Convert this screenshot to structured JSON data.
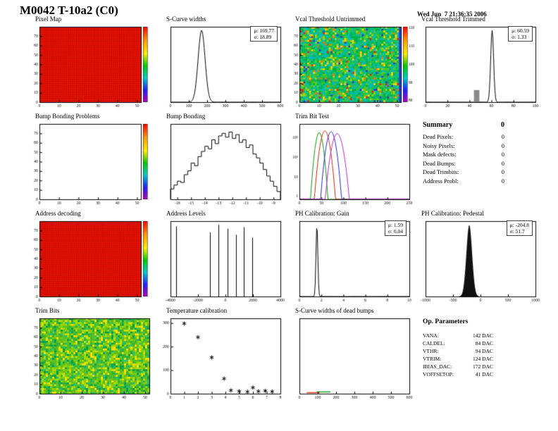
{
  "page": {
    "title": "M0042 T-10a2 (C0)",
    "date": "Wed Jun  7 21:36:35 2006"
  },
  "summary": {
    "title": "Summary",
    "total": "0",
    "items": [
      {
        "label": "Dead Pixels:",
        "value": "0"
      },
      {
        "label": "Noisy Pixels:",
        "value": "0"
      },
      {
        "label": "Mask defects:",
        "value": "0"
      },
      {
        "label": "Dead Bumps:",
        "value": "0"
      },
      {
        "label": "Dead Trimbits:",
        "value": "0"
      },
      {
        "label": "Address Probl:",
        "value": "0"
      }
    ]
  },
  "op_parameters": {
    "title": "Op. Parameters",
    "items": [
      {
        "label": "VANA:",
        "value": "142 DAC"
      },
      {
        "label": "CALDEL:",
        "value": "84 DAC"
      },
      {
        "label": "VTHR:",
        "value": "94 DAC"
      },
      {
        "label": "VTRIM:",
        "value": "124 DAC"
      },
      {
        "label": "IBIAS_DAC:",
        "value": "172 DAC"
      },
      {
        "label": "VOFFSETOP:",
        "value": "41 DAC"
      }
    ]
  },
  "colors": {
    "map_red": "#ec1400",
    "edge_blue": "#2244dd",
    "hist_line": "#000000"
  },
  "chart_data": [
    {
      "id": "pixel-map",
      "title": "Pixel Map",
      "type": "heatmap",
      "style": "solid-red",
      "colorbar": true,
      "x_range": [
        0,
        52
      ],
      "y_range": [
        0,
        80
      ],
      "x_ticks": [
        0,
        10,
        20,
        30,
        40,
        50
      ],
      "y_ticks": [
        0,
        10,
        20,
        30,
        40,
        50,
        60,
        70
      ]
    },
    {
      "id": "s-curve-widths",
      "title": "S-Curve widths",
      "type": "hist_gauss",
      "mean": 169.77,
      "sigma": 18.89,
      "x_range": [
        0,
        600
      ],
      "x_ticks": [
        0,
        100,
        200,
        300,
        400,
        500,
        600
      ],
      "stats": {
        "mu": "μ: 169.77",
        "sigma": "σ: 18.89"
      }
    },
    {
      "id": "vcal-threshold-untrimmed",
      "title": "Vcal Threshold Untrimmed",
      "type": "heatmap",
      "style": "noise",
      "seed": 7,
      "colorbar": true,
      "x_range": [
        0,
        52
      ],
      "y_range": [
        0,
        80
      ],
      "x_ticks": [
        0,
        10,
        20,
        30,
        40,
        50
      ],
      "y_ticks": [
        0,
        10,
        20,
        30,
        40,
        50,
        60,
        70
      ],
      "z_ticks": [
        120,
        110,
        100,
        90,
        80
      ]
    },
    {
      "id": "vcal-threshold-trimmed",
      "title": "Vcal Threshold Trimmed",
      "type": "hist_gauss",
      "mean": 60.59,
      "sigma": 1.33,
      "x_range": [
        0,
        100
      ],
      "x_ticks": [
        0,
        20,
        40,
        60,
        80,
        100
      ],
      "extra_bar": {
        "x0": 44,
        "x1": 49,
        "frac": 0.16
      },
      "stats": {
        "mu": "μ: 60.59",
        "sigma": "σ: 1.33"
      }
    },
    {
      "id": "bump-bonding-problems",
      "title": "Bump Bonding Problems",
      "type": "heatmap",
      "style": "empty",
      "colorbar": true,
      "x_range": [
        0,
        52
      ],
      "y_range": [
        0,
        80
      ],
      "x_ticks": [
        0,
        10,
        20,
        30,
        40,
        50
      ],
      "y_ticks": [
        0,
        10,
        20,
        30,
        40,
        50,
        60,
        70
      ]
    },
    {
      "id": "bump-bonding",
      "title": "Bump Bonding",
      "type": "hist_bins",
      "x_range": [
        -16.5,
        -8.5
      ],
      "x_ticks": [
        -16,
        -15,
        -14,
        -13,
        -12,
        -11,
        -10,
        -9
      ],
      "bins": [
        40,
        55,
        70,
        65,
        95,
        110,
        140,
        130,
        165,
        185,
        205,
        195,
        230,
        215,
        245,
        255,
        240,
        260,
        235,
        250,
        220,
        230,
        200,
        210,
        175,
        160,
        140,
        115,
        90,
        70,
        50,
        30
      ]
    },
    {
      "id": "trim-bit-test",
      "title": "Trim Bit Test",
      "type": "multi_gauss_log",
      "x_range": [
        0,
        250
      ],
      "x_ticks": [
        0,
        50,
        100,
        150,
        200,
        250
      ],
      "y_log_ticks": [
        "1",
        "10",
        "10²",
        "10³"
      ],
      "series": [
        {
          "name": "trim-bit-1",
          "color": "#009900",
          "mean": 45,
          "sigma": 5,
          "peak": 1800
        },
        {
          "name": "trim-bit-2",
          "color": "#cc2200",
          "mean": 58,
          "sigma": 6,
          "peak": 2200
        },
        {
          "name": "trim-bit-3",
          "color": "#2222cc",
          "mean": 72,
          "sigma": 6,
          "peak": 2000
        },
        {
          "name": "trim-bit-4",
          "color": "#bb22bb",
          "mean": 86,
          "sigma": 7,
          "peak": 1600
        }
      ]
    },
    {
      "id": "summary",
      "type": "text"
    },
    {
      "id": "address-decoding",
      "title": "Address decoding",
      "type": "heatmap",
      "style": "solid-red",
      "colorbar": true,
      "x_range": [
        0,
        52
      ],
      "y_range": [
        0,
        80
      ],
      "x_ticks": [
        0,
        10,
        20,
        30,
        40,
        50
      ],
      "y_ticks": [
        0,
        10,
        20,
        30,
        40,
        50,
        60,
        70
      ]
    },
    {
      "id": "address-levels",
      "title": "Address Levels",
      "type": "spikes",
      "x_range": [
        -4000,
        4000
      ],
      "x_ticks": [
        -4000,
        -2000,
        0,
        2000,
        4000
      ],
      "spikes": [
        [
          -3600,
          0.93
        ],
        [
          -1150,
          0.85
        ],
        [
          -500,
          0.95
        ],
        [
          150,
          0.9
        ],
        [
          750,
          0.82
        ],
        [
          1350,
          0.92
        ],
        [
          1950,
          0.78
        ]
      ]
    },
    {
      "id": "ph-calibration-gain",
      "title": "PH Calibration: Gain",
      "type": "hist_gauss",
      "mean": 1.59,
      "sigma": 0.04,
      "x_range": [
        0,
        10
      ],
      "x_ticks": [
        0,
        2,
        4,
        6,
        8,
        10
      ],
      "stats": {
        "mu": "μ: 1.59",
        "sigma": "σ: 0.04"
      }
    },
    {
      "id": "ph-calibration-pedestal",
      "title": "PH Calibration: Pedestal",
      "type": "hist_gauss",
      "mean": -204.8,
      "sigma": 51.7,
      "fill": true,
      "x_range": [
        -1000,
        1000
      ],
      "x_ticks": [
        -1000,
        -500,
        0,
        500,
        1000
      ],
      "stats": {
        "mu": "μ: -204.8",
        "sigma": "σ: 51.7"
      }
    },
    {
      "id": "trim-bits",
      "title": "Trim Bits",
      "type": "heatmap",
      "style": "noise-green",
      "seed": 11,
      "colorbar": false,
      "x_range": [
        0,
        52
      ],
      "y_range": [
        0,
        80
      ],
      "x_ticks": [
        0,
        10,
        20,
        30,
        40,
        50
      ],
      "y_ticks": [
        0,
        10,
        20,
        30,
        40,
        50,
        60,
        70
      ]
    },
    {
      "id": "temperature-calibration",
      "title": "Temperature calibration",
      "type": "scatter_star",
      "x_range": [
        0,
        8
      ],
      "y_range": [
        0,
        320
      ],
      "x_ticks": [
        0,
        1,
        2,
        3,
        4,
        5,
        6,
        7,
        8
      ],
      "y_ticks": [
        0,
        100,
        200,
        300
      ],
      "points": [
        [
          1.0,
          298
        ],
        [
          2.0,
          240
        ],
        [
          3.0,
          154
        ],
        [
          3.9,
          64
        ],
        [
          4.4,
          14
        ],
        [
          5.0,
          10
        ],
        [
          5.6,
          8
        ],
        [
          6.0,
          26
        ],
        [
          6.4,
          10
        ],
        [
          6.9,
          12
        ],
        [
          7.4,
          9
        ]
      ]
    },
    {
      "id": "s-curve-widths-dead-bumps",
      "title": "S-Curve widths of dead bumps",
      "type": "flatline",
      "x_range": [
        0,
        600
      ],
      "x_ticks": [
        0,
        100,
        200,
        300,
        400,
        500,
        600
      ],
      "segments": [
        {
          "color": "#dd2200",
          "x0": 40,
          "x1": 110
        },
        {
          "color": "#009900",
          "x0": 95,
          "x1": 170
        }
      ]
    },
    {
      "id": "op-parameters",
      "type": "text"
    }
  ]
}
